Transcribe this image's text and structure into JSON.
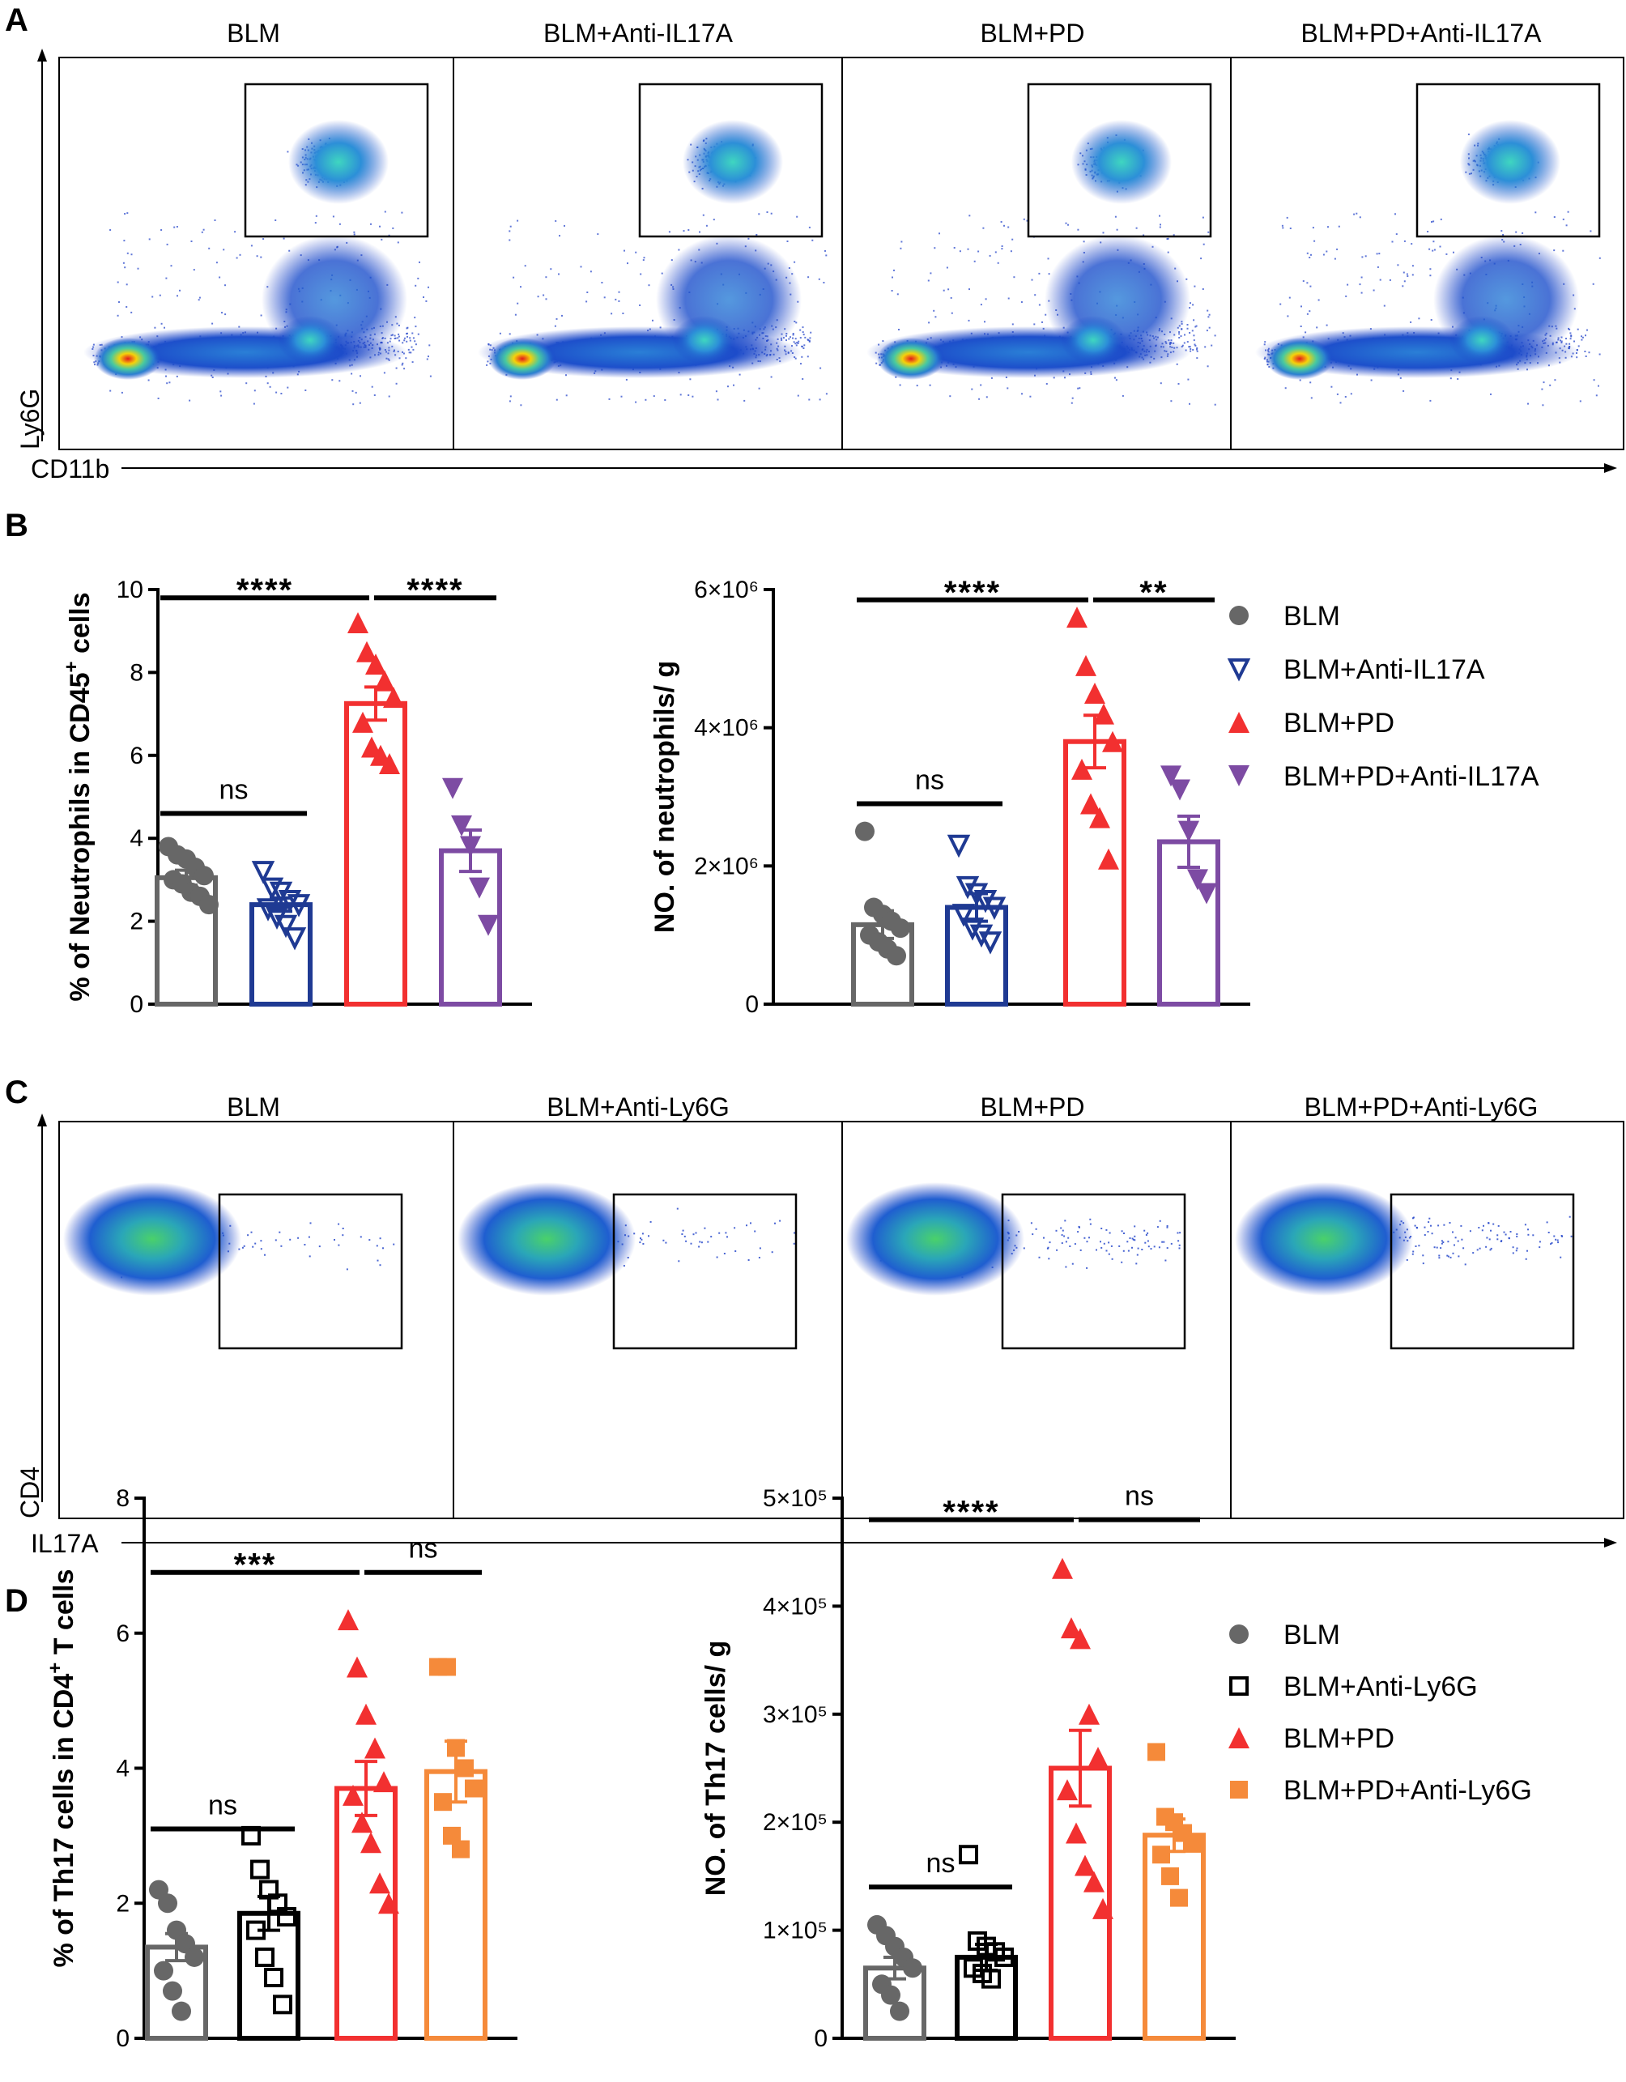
{
  "panels": {
    "A": "A",
    "B": "B",
    "C": "C",
    "D": "D"
  },
  "flowA": {
    "titles": [
      "BLM",
      "BLM+Anti-IL17A",
      "BLM+PD",
      "BLM+PD+Anti-IL17A"
    ],
    "y_axis": "Ly6G",
    "x_axis": "CD11b"
  },
  "flowC": {
    "titles": [
      "BLM",
      "BLM+Anti-Ly6G",
      "BLM+PD",
      "BLM+PD+Anti-Ly6G"
    ],
    "y_axis": "CD4",
    "x_axis": "IL17A"
  },
  "colors": {
    "grey": "#676767",
    "blue": "#1f3a93",
    "red": "#f23030",
    "purple": "#7d4ba3",
    "orange": "#f58a3a",
    "black": "#000000"
  },
  "legendB": [
    "BLM",
    "BLM+Anti-IL17A",
    "BLM+PD",
    "BLM+PD+Anti-IL17A"
  ],
  "legendD": [
    "BLM",
    "BLM+Anti-Ly6G",
    "BLM+PD",
    "BLM+PD+Anti-Ly6G"
  ],
  "chart_data": [
    {
      "id": "B1",
      "type": "bar",
      "ylabel_main": "% of Neutrophils in CD45",
      "ylabel_sup": "+",
      "ylabel_tail": " cells",
      "ylim": [
        0,
        10
      ],
      "yticks": [
        {
          "v": 0,
          "t": "0"
        },
        {
          "v": 2,
          "t": "2"
        },
        {
          "v": 4,
          "t": "4"
        },
        {
          "v": 6,
          "t": "6"
        },
        {
          "v": 8,
          "t": "8"
        },
        {
          "v": 10,
          "t": "10"
        }
      ],
      "bars": [
        {
          "name": "BLM",
          "mean": 3.05,
          "sem": 0.18,
          "color": "grey",
          "marker": "circle",
          "points": [
            3.8,
            3.6,
            3.5,
            3.3,
            3.1,
            3.0,
            2.9,
            2.7,
            2.6,
            2.4
          ]
        },
        {
          "name": "BLM+Anti-IL17A",
          "mean": 2.4,
          "sem": 0.16,
          "color": "blue",
          "marker": "triangle-down-open",
          "points": [
            3.2,
            2.8,
            2.7,
            2.5,
            2.4,
            2.3,
            2.1,
            1.9,
            1.6
          ]
        },
        {
          "name": "BLM+PD",
          "mean": 7.25,
          "sem": 0.4,
          "color": "red",
          "marker": "triangle-up",
          "points": [
            9.2,
            8.5,
            8.2,
            7.8,
            7.4,
            6.8,
            6.2,
            6.0,
            5.8
          ]
        },
        {
          "name": "BLM+PD+Anti-IL17A",
          "mean": 3.7,
          "sem": 0.5,
          "color": "purple",
          "marker": "triangle-down",
          "points": [
            5.2,
            4.3,
            3.8,
            2.8,
            1.9
          ]
        }
      ],
      "sig": [
        {
          "from": 0,
          "to": 2,
          "y": 9.8,
          "label": "****"
        },
        {
          "from": 2,
          "to": 3,
          "y": 9.8,
          "label": "****"
        },
        {
          "from": 0,
          "to": 1,
          "y": 4.6,
          "label": "ns"
        }
      ]
    },
    {
      "id": "B2",
      "type": "bar",
      "ylabel_main": "NO. of neutrophils/ g",
      "ylim": [
        0,
        6000000
      ],
      "yticks": [
        {
          "v": 0,
          "t": "0"
        },
        {
          "v": 2000000,
          "t": "2×10⁶"
        },
        {
          "v": 4000000,
          "t": "4×10⁶"
        },
        {
          "v": 6000000,
          "t": "6×10⁶"
        }
      ],
      "bars": [
        {
          "name": "BLM",
          "mean": 1150000,
          "sem": 200000,
          "color": "grey",
          "marker": "circle",
          "points": [
            2500000,
            1400000,
            1300000,
            1200000,
            1100000,
            1000000,
            900000,
            800000,
            700000
          ]
        },
        {
          "name": "BLM+Anti-IL17A",
          "mean": 1400000,
          "sem": 200000,
          "color": "blue",
          "marker": "triangle-down-open",
          "points": [
            2300000,
            1700000,
            1600000,
            1500000,
            1400000,
            1300000,
            1100000,
            1000000,
            900000
          ]
        },
        {
          "name": "BLM+PD",
          "mean": 3800000,
          "sem": 380000,
          "color": "red",
          "marker": "triangle-up",
          "points": [
            5600000,
            4900000,
            4500000,
            4200000,
            3800000,
            3400000,
            2900000,
            2700000,
            2100000
          ]
        },
        {
          "name": "BLM+PD+Anti-IL17A",
          "mean": 2350000,
          "sem": 370000,
          "color": "purple",
          "marker": "triangle-down",
          "points": [
            3300000,
            3100000,
            2500000,
            1800000,
            1600000
          ]
        }
      ],
      "sig": [
        {
          "from": 0,
          "to": 2,
          "y": 5850000,
          "label": "****"
        },
        {
          "from": 2,
          "to": 3,
          "y": 5850000,
          "label": "**"
        },
        {
          "from": 0,
          "to": 1,
          "y": 2900000,
          "label": "ns"
        }
      ]
    },
    {
      "id": "D1",
      "type": "bar",
      "ylabel_main": "% of Th17 cells in CD4",
      "ylabel_sup": "+",
      "ylabel_tail": " T cells",
      "ylim": [
        0,
        8
      ],
      "yticks": [
        {
          "v": 0,
          "t": "0"
        },
        {
          "v": 2,
          "t": "2"
        },
        {
          "v": 4,
          "t": "4"
        },
        {
          "v": 6,
          "t": "6"
        },
        {
          "v": 8,
          "t": "8"
        }
      ],
      "bars": [
        {
          "name": "BLM",
          "mean": 1.35,
          "sem": 0.2,
          "color": "grey",
          "marker": "circle",
          "points": [
            2.2,
            2.0,
            1.6,
            1.4,
            1.2,
            1.0,
            0.7,
            0.4
          ]
        },
        {
          "name": "BLM+Anti-Ly6G",
          "mean": 1.85,
          "sem": 0.25,
          "color": "black",
          "marker": "square-open",
          "points": [
            3.0,
            2.5,
            2.2,
            2.0,
            1.8,
            1.6,
            1.2,
            0.9,
            0.5
          ]
        },
        {
          "name": "BLM+PD",
          "mean": 3.7,
          "sem": 0.4,
          "color": "red",
          "marker": "triangle-up",
          "points": [
            6.2,
            5.5,
            4.8,
            4.3,
            3.8,
            3.6,
            3.2,
            2.9,
            2.3,
            2.0
          ]
        },
        {
          "name": "BLM+PD+Anti-Ly6G",
          "mean": 3.95,
          "sem": 0.45,
          "color": "orange",
          "marker": "square",
          "points": [
            5.5,
            5.5,
            4.3,
            4.0,
            3.7,
            3.5,
            3.0,
            2.8
          ]
        }
      ],
      "sig": [
        {
          "from": 0,
          "to": 2,
          "y": 6.9,
          "label": "***"
        },
        {
          "from": 2,
          "to": 3,
          "y": 6.9,
          "label": "ns"
        },
        {
          "from": 0,
          "to": 1,
          "y": 3.1,
          "label": "ns"
        }
      ]
    },
    {
      "id": "D2",
      "type": "bar",
      "ylabel_main": "NO. of Th17 cells/ g",
      "ylim": [
        0,
        500000
      ],
      "yticks": [
        {
          "v": 0,
          "t": "0"
        },
        {
          "v": 100000,
          "t": "1×10⁵"
        },
        {
          "v": 200000,
          "t": "2×10⁵"
        },
        {
          "v": 300000,
          "t": "3×10⁵"
        },
        {
          "v": 400000,
          "t": "4×10⁵"
        },
        {
          "v": 500000,
          "t": "5×10⁵"
        }
      ],
      "bars": [
        {
          "name": "BLM",
          "mean": 65000,
          "sem": 10000,
          "color": "grey",
          "marker": "circle",
          "points": [
            105000,
            95000,
            85000,
            75000,
            65000,
            50000,
            40000,
            25000
          ]
        },
        {
          "name": "BLM+Anti-Ly6G",
          "mean": 75000,
          "sem": 12000,
          "color": "black",
          "marker": "square-open",
          "points": [
            170000,
            90000,
            85000,
            80000,
            75000,
            65000,
            60000,
            55000
          ]
        },
        {
          "name": "BLM+PD",
          "mean": 250000,
          "sem": 35000,
          "color": "red",
          "marker": "triangle-up",
          "points": [
            435000,
            380000,
            370000,
            300000,
            260000,
            230000,
            190000,
            160000,
            145000,
            120000
          ]
        },
        {
          "name": "BLM+PD+Anti-Ly6G",
          "mean": 188000,
          "sem": 15000,
          "color": "orange",
          "marker": "square",
          "points": [
            265000,
            205000,
            200000,
            190000,
            180000,
            170000,
            150000,
            130000
          ]
        }
      ],
      "sig": [
        {
          "from": 0,
          "to": 2,
          "y": 480000,
          "label": "****"
        },
        {
          "from": 2,
          "to": 3,
          "y": 480000,
          "label": "ns"
        },
        {
          "from": 0,
          "to": 1,
          "y": 140000,
          "label": "ns"
        }
      ]
    }
  ]
}
